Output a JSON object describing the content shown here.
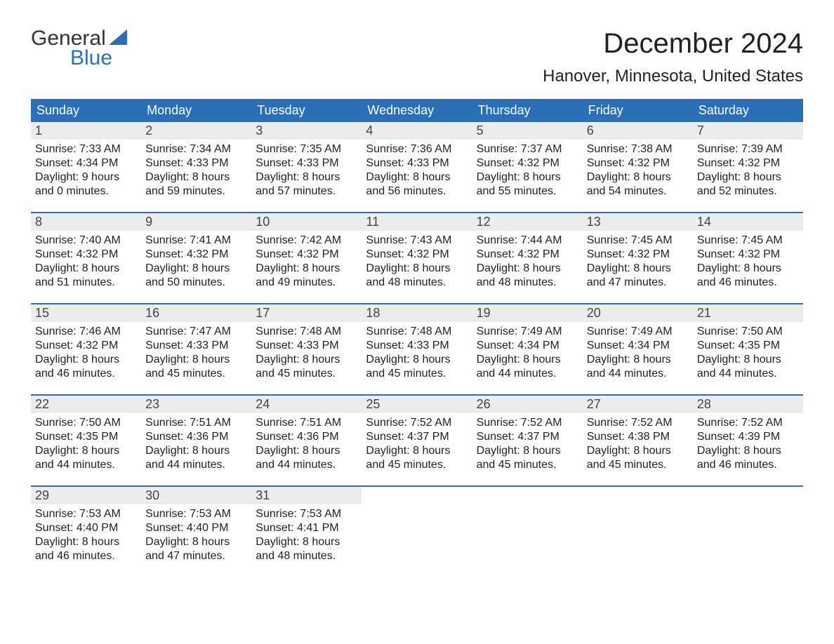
{
  "logo": {
    "top": "General",
    "bottom": "Blue",
    "icon_color": "#2a70b8"
  },
  "title": "December 2024",
  "location": "Hanover, Minnesota, United States",
  "colors": {
    "header_bg": "#2a70b8",
    "header_text": "#ffffff",
    "daynum_bg": "#ececec",
    "text": "#222222",
    "border": "#2a70b8"
  },
  "typography": {
    "title_fontsize": 40,
    "location_fontsize": 24,
    "header_fontsize": 18,
    "body_fontsize": 16
  },
  "day_headers": [
    "Sunday",
    "Monday",
    "Tuesday",
    "Wednesday",
    "Thursday",
    "Friday",
    "Saturday"
  ],
  "weeks": [
    [
      {
        "num": "1",
        "sunrise": "Sunrise: 7:33 AM",
        "sunset": "Sunset: 4:34 PM",
        "daylight1": "Daylight: 9 hours",
        "daylight2": "and 0 minutes."
      },
      {
        "num": "2",
        "sunrise": "Sunrise: 7:34 AM",
        "sunset": "Sunset: 4:33 PM",
        "daylight1": "Daylight: 8 hours",
        "daylight2": "and 59 minutes."
      },
      {
        "num": "3",
        "sunrise": "Sunrise: 7:35 AM",
        "sunset": "Sunset: 4:33 PM",
        "daylight1": "Daylight: 8 hours",
        "daylight2": "and 57 minutes."
      },
      {
        "num": "4",
        "sunrise": "Sunrise: 7:36 AM",
        "sunset": "Sunset: 4:33 PM",
        "daylight1": "Daylight: 8 hours",
        "daylight2": "and 56 minutes."
      },
      {
        "num": "5",
        "sunrise": "Sunrise: 7:37 AM",
        "sunset": "Sunset: 4:32 PM",
        "daylight1": "Daylight: 8 hours",
        "daylight2": "and 55 minutes."
      },
      {
        "num": "6",
        "sunrise": "Sunrise: 7:38 AM",
        "sunset": "Sunset: 4:32 PM",
        "daylight1": "Daylight: 8 hours",
        "daylight2": "and 54 minutes."
      },
      {
        "num": "7",
        "sunrise": "Sunrise: 7:39 AM",
        "sunset": "Sunset: 4:32 PM",
        "daylight1": "Daylight: 8 hours",
        "daylight2": "and 52 minutes."
      }
    ],
    [
      {
        "num": "8",
        "sunrise": "Sunrise: 7:40 AM",
        "sunset": "Sunset: 4:32 PM",
        "daylight1": "Daylight: 8 hours",
        "daylight2": "and 51 minutes."
      },
      {
        "num": "9",
        "sunrise": "Sunrise: 7:41 AM",
        "sunset": "Sunset: 4:32 PM",
        "daylight1": "Daylight: 8 hours",
        "daylight2": "and 50 minutes."
      },
      {
        "num": "10",
        "sunrise": "Sunrise: 7:42 AM",
        "sunset": "Sunset: 4:32 PM",
        "daylight1": "Daylight: 8 hours",
        "daylight2": "and 49 minutes."
      },
      {
        "num": "11",
        "sunrise": "Sunrise: 7:43 AM",
        "sunset": "Sunset: 4:32 PM",
        "daylight1": "Daylight: 8 hours",
        "daylight2": "and 48 minutes."
      },
      {
        "num": "12",
        "sunrise": "Sunrise: 7:44 AM",
        "sunset": "Sunset: 4:32 PM",
        "daylight1": "Daylight: 8 hours",
        "daylight2": "and 48 minutes."
      },
      {
        "num": "13",
        "sunrise": "Sunrise: 7:45 AM",
        "sunset": "Sunset: 4:32 PM",
        "daylight1": "Daylight: 8 hours",
        "daylight2": "and 47 minutes."
      },
      {
        "num": "14",
        "sunrise": "Sunrise: 7:45 AM",
        "sunset": "Sunset: 4:32 PM",
        "daylight1": "Daylight: 8 hours",
        "daylight2": "and 46 minutes."
      }
    ],
    [
      {
        "num": "15",
        "sunrise": "Sunrise: 7:46 AM",
        "sunset": "Sunset: 4:32 PM",
        "daylight1": "Daylight: 8 hours",
        "daylight2": "and 46 minutes."
      },
      {
        "num": "16",
        "sunrise": "Sunrise: 7:47 AM",
        "sunset": "Sunset: 4:33 PM",
        "daylight1": "Daylight: 8 hours",
        "daylight2": "and 45 minutes."
      },
      {
        "num": "17",
        "sunrise": "Sunrise: 7:48 AM",
        "sunset": "Sunset: 4:33 PM",
        "daylight1": "Daylight: 8 hours",
        "daylight2": "and 45 minutes."
      },
      {
        "num": "18",
        "sunrise": "Sunrise: 7:48 AM",
        "sunset": "Sunset: 4:33 PM",
        "daylight1": "Daylight: 8 hours",
        "daylight2": "and 45 minutes."
      },
      {
        "num": "19",
        "sunrise": "Sunrise: 7:49 AM",
        "sunset": "Sunset: 4:34 PM",
        "daylight1": "Daylight: 8 hours",
        "daylight2": "and 44 minutes."
      },
      {
        "num": "20",
        "sunrise": "Sunrise: 7:49 AM",
        "sunset": "Sunset: 4:34 PM",
        "daylight1": "Daylight: 8 hours",
        "daylight2": "and 44 minutes."
      },
      {
        "num": "21",
        "sunrise": "Sunrise: 7:50 AM",
        "sunset": "Sunset: 4:35 PM",
        "daylight1": "Daylight: 8 hours",
        "daylight2": "and 44 minutes."
      }
    ],
    [
      {
        "num": "22",
        "sunrise": "Sunrise: 7:50 AM",
        "sunset": "Sunset: 4:35 PM",
        "daylight1": "Daylight: 8 hours",
        "daylight2": "and 44 minutes."
      },
      {
        "num": "23",
        "sunrise": "Sunrise: 7:51 AM",
        "sunset": "Sunset: 4:36 PM",
        "daylight1": "Daylight: 8 hours",
        "daylight2": "and 44 minutes."
      },
      {
        "num": "24",
        "sunrise": "Sunrise: 7:51 AM",
        "sunset": "Sunset: 4:36 PM",
        "daylight1": "Daylight: 8 hours",
        "daylight2": "and 44 minutes."
      },
      {
        "num": "25",
        "sunrise": "Sunrise: 7:52 AM",
        "sunset": "Sunset: 4:37 PM",
        "daylight1": "Daylight: 8 hours",
        "daylight2": "and 45 minutes."
      },
      {
        "num": "26",
        "sunrise": "Sunrise: 7:52 AM",
        "sunset": "Sunset: 4:37 PM",
        "daylight1": "Daylight: 8 hours",
        "daylight2": "and 45 minutes."
      },
      {
        "num": "27",
        "sunrise": "Sunrise: 7:52 AM",
        "sunset": "Sunset: 4:38 PM",
        "daylight1": "Daylight: 8 hours",
        "daylight2": "and 45 minutes."
      },
      {
        "num": "28",
        "sunrise": "Sunrise: 7:52 AM",
        "sunset": "Sunset: 4:39 PM",
        "daylight1": "Daylight: 8 hours",
        "daylight2": "and 46 minutes."
      }
    ],
    [
      {
        "num": "29",
        "sunrise": "Sunrise: 7:53 AM",
        "sunset": "Sunset: 4:40 PM",
        "daylight1": "Daylight: 8 hours",
        "daylight2": "and 46 minutes."
      },
      {
        "num": "30",
        "sunrise": "Sunrise: 7:53 AM",
        "sunset": "Sunset: 4:40 PM",
        "daylight1": "Daylight: 8 hours",
        "daylight2": "and 47 minutes."
      },
      {
        "num": "31",
        "sunrise": "Sunrise: 7:53 AM",
        "sunset": "Sunset: 4:41 PM",
        "daylight1": "Daylight: 8 hours",
        "daylight2": "and 48 minutes."
      },
      {
        "blank": true
      },
      {
        "blank": true
      },
      {
        "blank": true
      },
      {
        "blank": true
      }
    ]
  ]
}
